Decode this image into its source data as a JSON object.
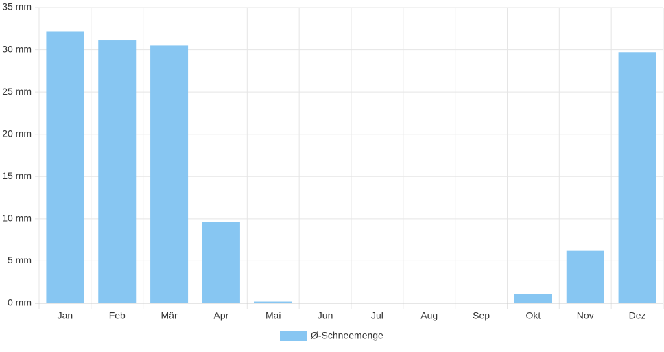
{
  "chart_data": {
    "type": "bar",
    "categories": [
      "Jan",
      "Feb",
      "Mär",
      "Apr",
      "Mai",
      "Jun",
      "Jul",
      "Aug",
      "Sep",
      "Okt",
      "Nov",
      "Dez"
    ],
    "series": [
      {
        "name": "Ø-Schneemenge",
        "color": "#87c6f2",
        "values": [
          32.2,
          31.1,
          30.5,
          9.6,
          0.2,
          0,
          0,
          0,
          0,
          1.1,
          6.2,
          29.7
        ]
      }
    ],
    "ylim": [
      0,
      35
    ],
    "yticks": [
      {
        "value": 0,
        "label": "0 mm"
      },
      {
        "value": 5,
        "label": "5 mm"
      },
      {
        "value": 10,
        "label": "10 mm"
      },
      {
        "value": 15,
        "label": "15 mm"
      },
      {
        "value": 20,
        "label": "20 mm"
      },
      {
        "value": 25,
        "label": "25 mm"
      },
      {
        "value": 30,
        "label": "30 mm"
      },
      {
        "value": 35,
        "label": "35 mm"
      }
    ],
    "grid": true,
    "legend": "bottom"
  }
}
